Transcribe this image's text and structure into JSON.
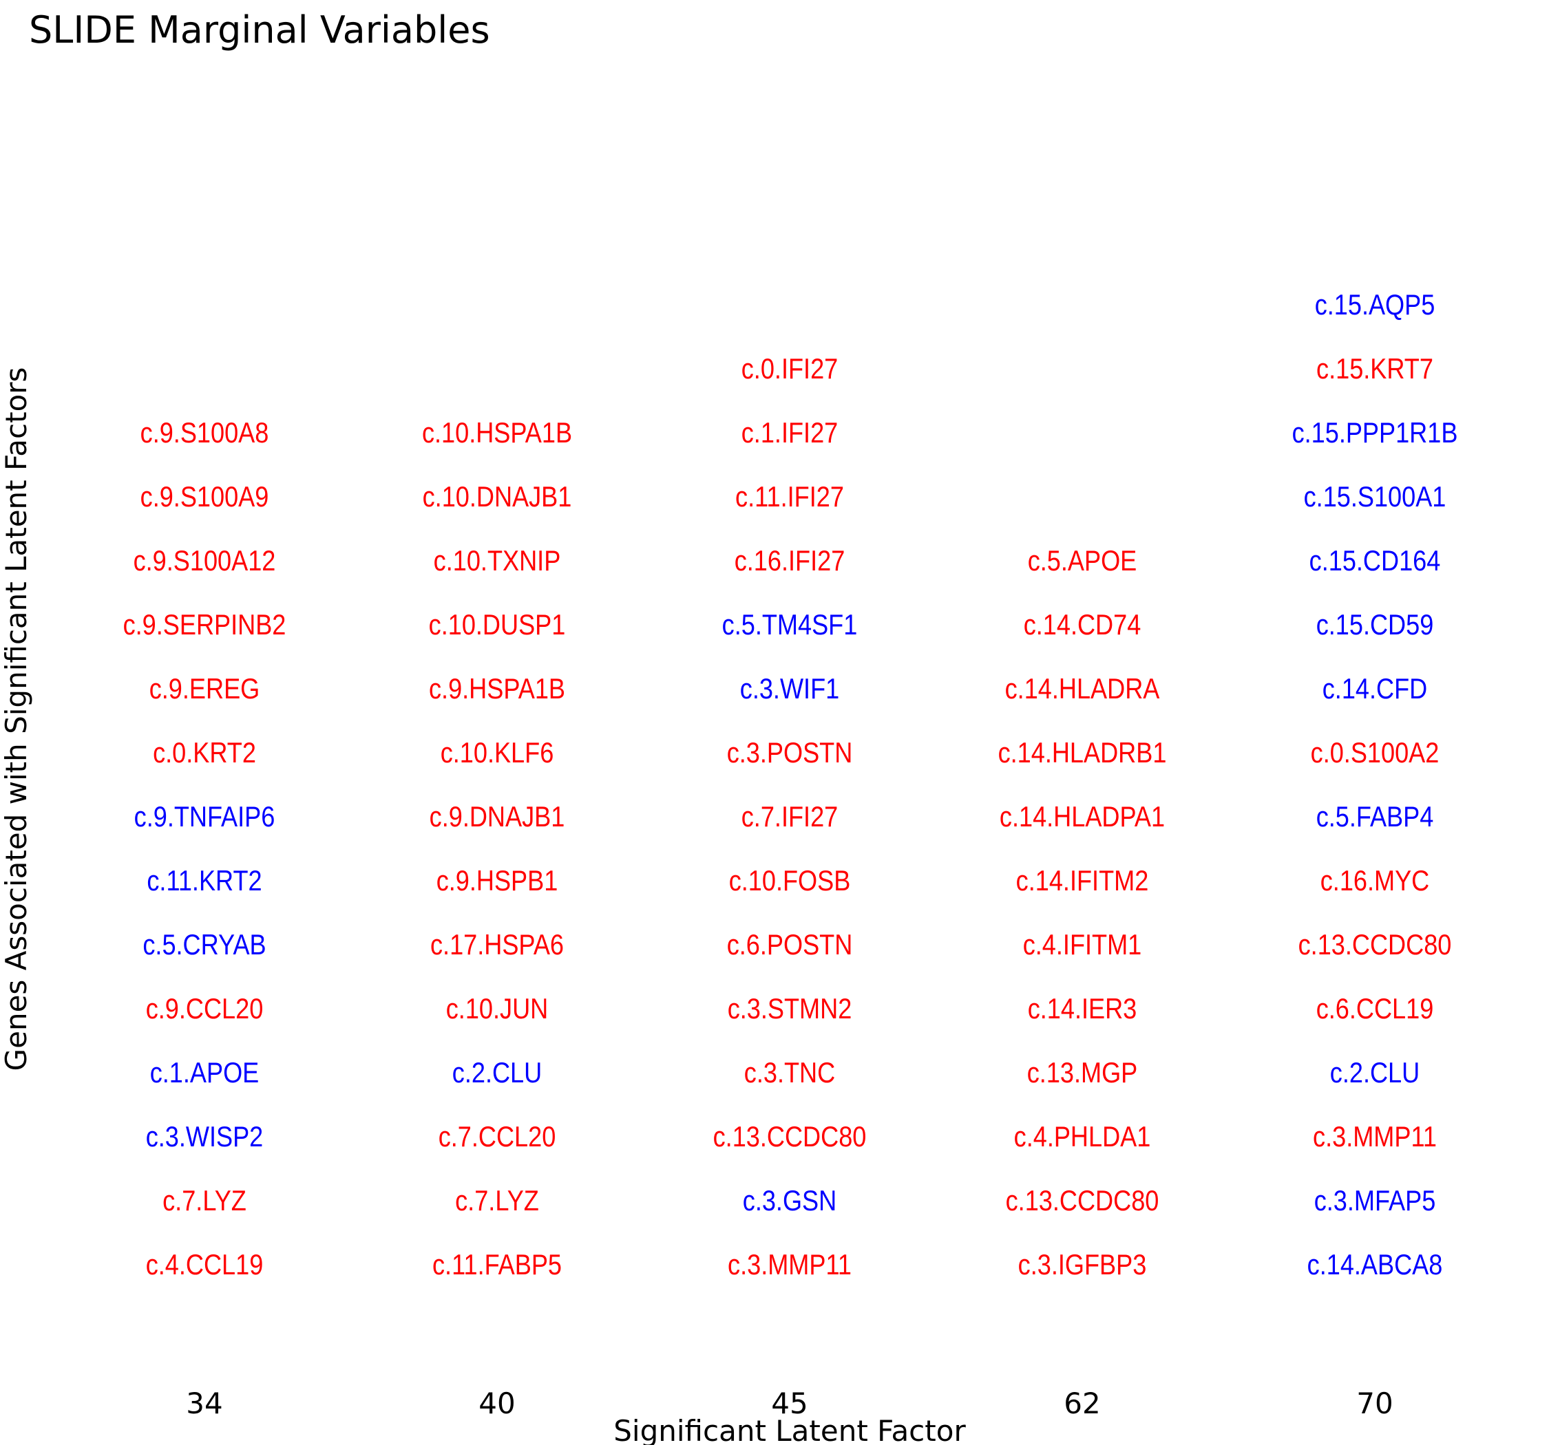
{
  "colors": {
    "positive": "#ff0000",
    "negative": "#0000ff"
  },
  "chart_data": {
    "type": "table",
    "title": "SLIDE Marginal Variables",
    "xlabel": "Significant Latent Factor",
    "ylabel": "Genes Associated with Significant Latent Factors",
    "categories": [
      "34",
      "40",
      "45",
      "62",
      "70"
    ],
    "columns": [
      {
        "factor": "34",
        "genes": [
          {
            "label": "c.4.CCL19",
            "color": "red"
          },
          {
            "label": "c.7.LYZ",
            "color": "red"
          },
          {
            "label": "c.3.WISP2",
            "color": "blue"
          },
          {
            "label": "c.1.APOE",
            "color": "blue"
          },
          {
            "label": "c.9.CCL20",
            "color": "red"
          },
          {
            "label": "c.5.CRYAB",
            "color": "blue"
          },
          {
            "label": "c.11.KRT2",
            "color": "blue"
          },
          {
            "label": "c.9.TNFAIP6",
            "color": "blue"
          },
          {
            "label": "c.0.KRT2",
            "color": "red"
          },
          {
            "label": "c.9.EREG",
            "color": "red"
          },
          {
            "label": "c.9.SERPINB2",
            "color": "red"
          },
          {
            "label": "c.9.S100A12",
            "color": "red"
          },
          {
            "label": "c.9.S100A9",
            "color": "red"
          },
          {
            "label": "c.9.S100A8",
            "color": "red"
          }
        ]
      },
      {
        "factor": "40",
        "genes": [
          {
            "label": "c.11.FABP5",
            "color": "red"
          },
          {
            "label": "c.7.LYZ",
            "color": "red"
          },
          {
            "label": "c.7.CCL20",
            "color": "red"
          },
          {
            "label": "c.2.CLU",
            "color": "blue"
          },
          {
            "label": "c.10.JUN",
            "color": "red"
          },
          {
            "label": "c.17.HSPA6",
            "color": "red"
          },
          {
            "label": "c.9.HSPB1",
            "color": "red"
          },
          {
            "label": "c.9.DNAJB1",
            "color": "red"
          },
          {
            "label": "c.10.KLF6",
            "color": "red"
          },
          {
            "label": "c.9.HSPA1B",
            "color": "red"
          },
          {
            "label": "c.10.DUSP1",
            "color": "red"
          },
          {
            "label": "c.10.TXNIP",
            "color": "red"
          },
          {
            "label": "c.10.DNAJB1",
            "color": "red"
          },
          {
            "label": "c.10.HSPA1B",
            "color": "red"
          }
        ]
      },
      {
        "factor": "45",
        "genes": [
          {
            "label": "c.3.MMP11",
            "color": "red"
          },
          {
            "label": "c.3.GSN",
            "color": "blue"
          },
          {
            "label": "c.13.CCDC80",
            "color": "red"
          },
          {
            "label": "c.3.TNC",
            "color": "red"
          },
          {
            "label": "c.3.STMN2",
            "color": "red"
          },
          {
            "label": "c.6.POSTN",
            "color": "red"
          },
          {
            "label": "c.10.FOSB",
            "color": "red"
          },
          {
            "label": "c.7.IFI27",
            "color": "red"
          },
          {
            "label": "c.3.POSTN",
            "color": "red"
          },
          {
            "label": "c.3.WIF1",
            "color": "blue"
          },
          {
            "label": "c.5.TM4SF1",
            "color": "blue"
          },
          {
            "label": "c.16.IFI27",
            "color": "red"
          },
          {
            "label": "c.11.IFI27",
            "color": "red"
          },
          {
            "label": "c.1.IFI27",
            "color": "red"
          },
          {
            "label": "c.0.IFI27",
            "color": "red"
          }
        ]
      },
      {
        "factor": "62",
        "genes": [
          {
            "label": "c.3.IGFBP3",
            "color": "red"
          },
          {
            "label": "c.13.CCDC80",
            "color": "red"
          },
          {
            "label": "c.4.PHLDA1",
            "color": "red"
          },
          {
            "label": "c.13.MGP",
            "color": "red"
          },
          {
            "label": "c.14.IER3",
            "color": "red"
          },
          {
            "label": "c.4.IFITM1",
            "color": "red"
          },
          {
            "label": "c.14.IFITM2",
            "color": "red"
          },
          {
            "label": "c.14.HLADPA1",
            "color": "red"
          },
          {
            "label": "c.14.HLADRB1",
            "color": "red"
          },
          {
            "label": "c.14.HLADRA",
            "color": "red"
          },
          {
            "label": "c.14.CD74",
            "color": "red"
          },
          {
            "label": "c.5.APOE",
            "color": "red"
          }
        ]
      },
      {
        "factor": "70",
        "genes": [
          {
            "label": "c.14.ABCA8",
            "color": "blue"
          },
          {
            "label": "c.3.MFAP5",
            "color": "blue"
          },
          {
            "label": "c.3.MMP11",
            "color": "red"
          },
          {
            "label": "c.2.CLU",
            "color": "blue"
          },
          {
            "label": "c.6.CCL19",
            "color": "red"
          },
          {
            "label": "c.13.CCDC80",
            "color": "red"
          },
          {
            "label": "c.16.MYC",
            "color": "red"
          },
          {
            "label": "c.5.FABP4",
            "color": "blue"
          },
          {
            "label": "c.0.S100A2",
            "color": "red"
          },
          {
            "label": "c.14.CFD",
            "color": "blue"
          },
          {
            "label": "c.15.CD59",
            "color": "blue"
          },
          {
            "label": "c.15.CD164",
            "color": "blue"
          },
          {
            "label": "c.15.S100A1",
            "color": "blue"
          },
          {
            "label": "c.15.PPP1R1B",
            "color": "blue"
          },
          {
            "label": "c.15.KRT7",
            "color": "red"
          },
          {
            "label": "c.15.AQP5",
            "color": "blue"
          }
        ]
      }
    ],
    "grid": false,
    "legend": "none"
  }
}
